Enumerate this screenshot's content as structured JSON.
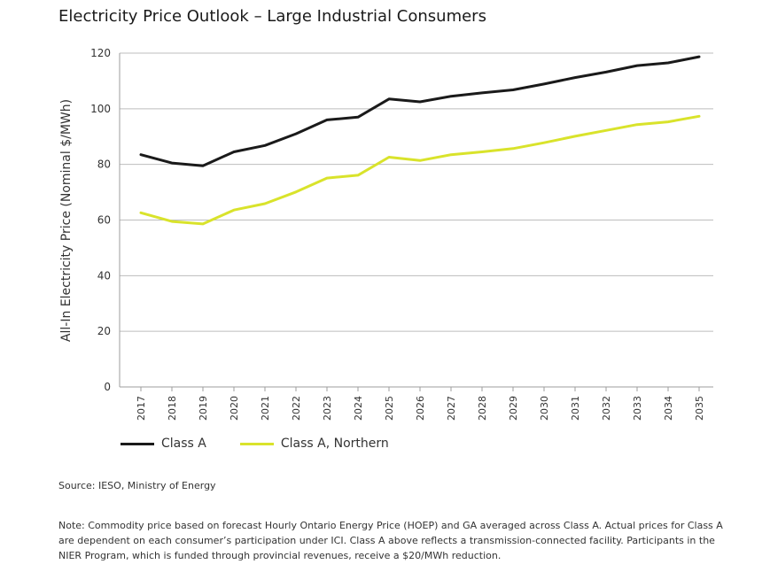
{
  "chart_data": {
    "type": "line",
    "title": "Electricity Price Outlook – Large Industrial Consumers",
    "xlabel": "",
    "ylabel": "All-In Electricity Price (Nominal $/MWh)",
    "ylim": [
      0,
      120
    ],
    "yticks": [
      "0",
      "20",
      "40",
      "60",
      "80",
      "100",
      "120"
    ],
    "categories": [
      "2017",
      "2018",
      "2019",
      "2020",
      "2021",
      "2022",
      "2023",
      "2024",
      "2025",
      "2026",
      "2027",
      "2028",
      "2029",
      "2030",
      "2031",
      "2032",
      "2033",
      "2034",
      "2035"
    ],
    "grid": "horizontal",
    "legend_position": "bottom-left",
    "series": [
      {
        "name": "Class A",
        "color": "#1a1a1a",
        "values": [
          83.5,
          80.5,
          79.5,
          84.5,
          86.8,
          91,
          96,
          97,
          103.5,
          102.5,
          104.5,
          105.7,
          106.8,
          108.9,
          111.2,
          113.2,
          115.5,
          116.5,
          118.7
        ]
      },
      {
        "name": "Class A, Northern",
        "color": "#d9e32b",
        "values": [
          62.6,
          59.5,
          58.6,
          63.6,
          65.9,
          70.1,
          75.1,
          76.1,
          82.6,
          81.4,
          83.5,
          84.5,
          85.7,
          87.8,
          90.1,
          92.2,
          94.3,
          95.3,
          97.3
        ]
      }
    ]
  },
  "legend": {
    "items": [
      {
        "label": "Class A",
        "color": "#1a1a1a"
      },
      {
        "label": "Class A, Northern",
        "color": "#d9e32b"
      }
    ]
  },
  "footer": {
    "source": "Source: IESO, Ministry of Energy",
    "note": "Note: Commodity price based on forecast Hourly Ontario Energy Price (HOEP) and GA averaged across Class A. Actual prices for Class A are dependent on each consumer’s participation under ICI. Class A above reflects a transmission-connected facility. Participants in the NIER Program, which is funded through provincial revenues, receive a $20/MWh reduction."
  }
}
